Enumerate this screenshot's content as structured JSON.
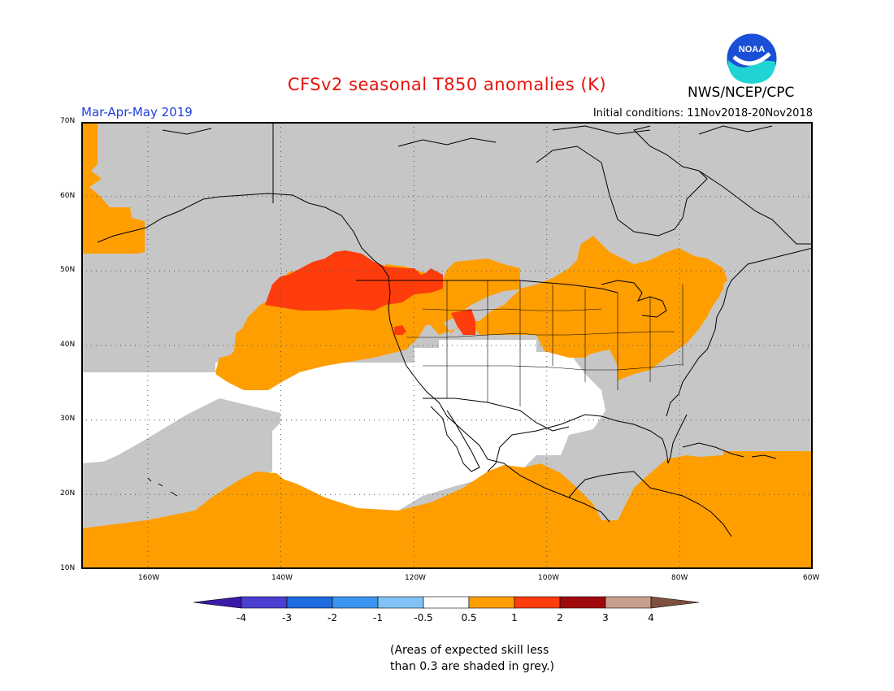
{
  "header": {
    "title": "CFSv2 seasonal T850 anomalies (K)",
    "period": "Mar-Apr-May 2019",
    "initial_conditions": "Initial conditions: 11Nov2018-20Nov2018",
    "org": "NWS/NCEP/CPC",
    "logo_text": "NOAA"
  },
  "map": {
    "region": "North America and eastern North Pacific",
    "lon_labels": [
      "160W",
      "140W",
      "120W",
      "100W",
      "80W",
      "60W"
    ],
    "lat_labels": [
      "10N",
      "20N",
      "30N",
      "40N",
      "50N",
      "60N",
      "70N"
    ],
    "lon_range": [
      -170,
      -60
    ],
    "lat_range": [
      10,
      70
    ],
    "colors": {
      "grey_low_skill": "#c6c6c6",
      "near_normal": "#ffffff",
      "orange_0_5_to_1": "#ff9e00",
      "red_1_to_2": "#ff3c0c",
      "coast": "#000000"
    }
  },
  "legend": {
    "labels": [
      "-4",
      "-3",
      "-2",
      "-1",
      "-0.5",
      "0.5",
      "1",
      "2",
      "3",
      "4"
    ],
    "colors": [
      "#3a1aa8",
      "#4a3fd0",
      "#1e6be0",
      "#3b95f0",
      "#82c2f4",
      "#ffffff",
      "#ff9e00",
      "#ff3c0c",
      "#a0090c",
      "#c9a090",
      "#7e5040"
    ]
  },
  "note": {
    "line1": "(Areas of expected skill less",
    "line2": "than 0.3 are shaded in grey.)"
  }
}
